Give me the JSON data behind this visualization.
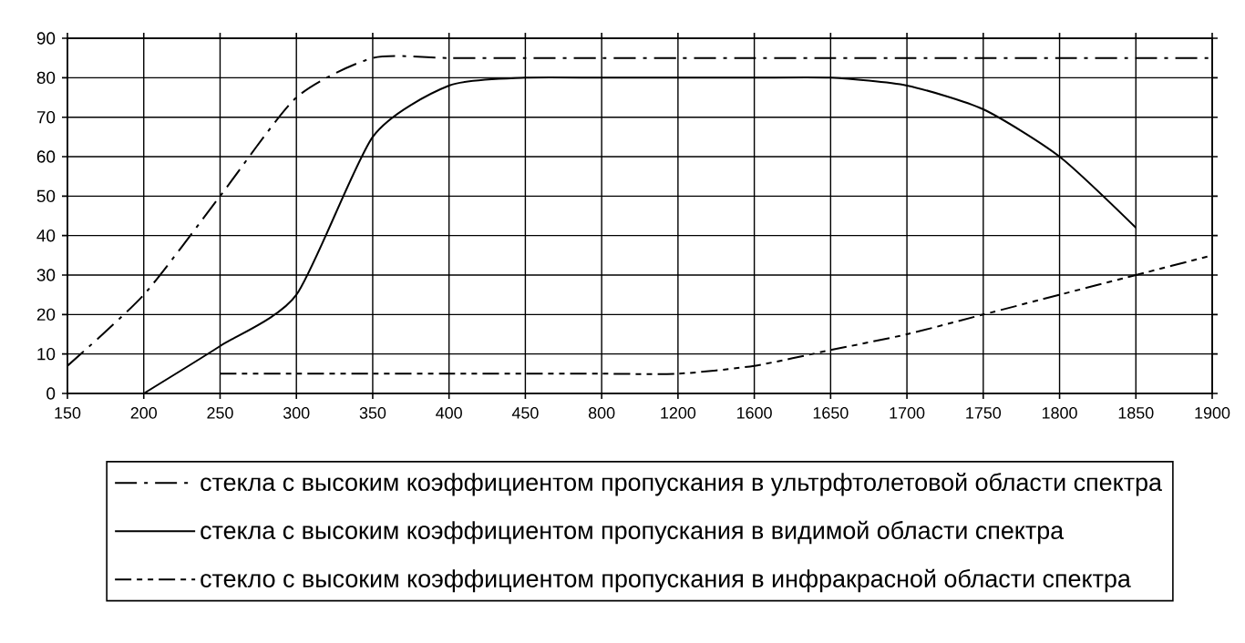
{
  "chart_data": {
    "type": "line",
    "categories": [
      "150",
      "200",
      "250",
      "300",
      "350",
      "400",
      "450",
      "800",
      "1200",
      "1600",
      "1650",
      "1700",
      "1750",
      "1800",
      "1850",
      "1900"
    ],
    "ylim": [
      0,
      90
    ],
    "yticks": [
      0,
      10,
      20,
      30,
      40,
      50,
      60,
      70,
      80,
      90
    ],
    "grid": true,
    "legend": "bottom",
    "series": [
      {
        "name": "стекла с высоким коэффициентом пропускания в ультрфтолетовой области спектра",
        "color": "#000000",
        "line_style": "dashdot",
        "values": [
          7,
          25,
          50,
          75,
          85,
          85,
          85,
          85,
          85,
          85,
          85,
          85,
          85,
          85,
          85,
          85
        ]
      },
      {
        "name": "стекла с высоким коэффициентом пропускания в видимой области спектра",
        "color": "#000000",
        "line_style": "solid",
        "values": [
          null,
          0,
          12,
          25,
          65,
          78,
          80,
          80,
          80,
          80,
          80,
          78,
          72,
          60,
          42,
          null
        ]
      },
      {
        "name": "стекло с высоким коэффициентом пропускания в инфракрасной области спектра",
        "color": "#000000",
        "line_style": "dashed",
        "values": [
          null,
          null,
          5,
          5,
          5,
          5,
          5,
          5,
          5,
          7,
          11,
          15,
          20,
          25,
          30,
          35
        ]
      }
    ]
  }
}
